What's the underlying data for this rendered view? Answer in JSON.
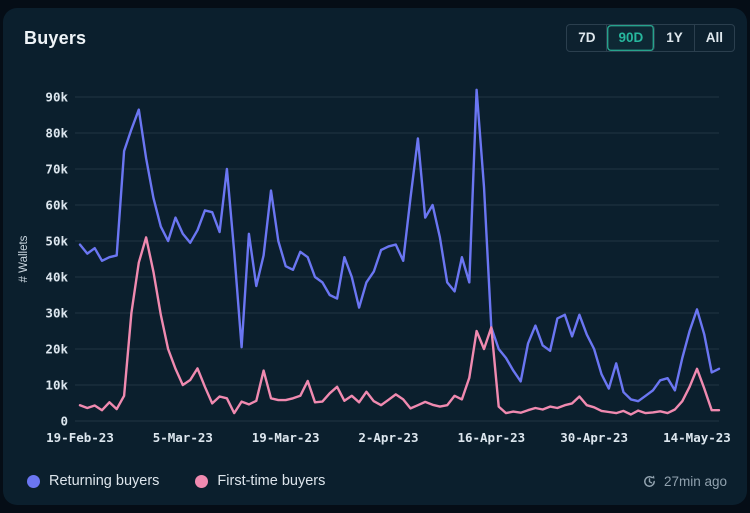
{
  "header": {
    "title": "Buyers",
    "ranges": [
      {
        "label": "7D",
        "active": false
      },
      {
        "label": "90D",
        "active": true
      },
      {
        "label": "1Y",
        "active": false
      },
      {
        "label": "All",
        "active": false
      }
    ]
  },
  "footer": {
    "updated": "27min ago",
    "updated_icon": "refresh-clock-icon"
  },
  "colors": {
    "background_outer": "#050d16",
    "background_card": "#0b1f2d",
    "returning": "#6b76f2",
    "first_time": "#f08ab0",
    "accent_teal": "#27b79e",
    "gridline": "rgba(185,208,218,0.13)",
    "tick_text": "#dce6ee",
    "muted_text": "#90a1ae"
  },
  "chart_data": {
    "type": "line",
    "title": "Buyers",
    "xlabel": "",
    "ylabel": "# Wallets",
    "x_description": "daily values over the selected 90-day range (19-Feb-23 onward, 88 points)",
    "values_unit": "thousands of wallets",
    "ylim": [
      0,
      95
    ],
    "grid": "horizontal",
    "legend_position": "bottom-left",
    "y_tick_values": [
      0,
      10,
      20,
      30,
      40,
      50,
      60,
      70,
      80,
      90
    ],
    "y_tick_labels": [
      "0",
      "10k",
      "20k",
      "30k",
      "40k",
      "50k",
      "60k",
      "70k",
      "80k",
      "90k"
    ],
    "x_tick_positions": [
      0,
      14,
      28,
      42,
      56,
      70,
      84
    ],
    "x_tick_labels": [
      "19-Feb-23",
      "5-Mar-23",
      "19-Mar-23",
      "2-Apr-23",
      "16-Apr-23",
      "30-Apr-23",
      "14-May-23"
    ],
    "series": [
      {
        "name": "Returning buyers",
        "color": "#6b76f2",
        "values": [
          49,
          46.5,
          48,
          44.5,
          45.5,
          46,
          75,
          81,
          86.5,
          73,
          62,
          54,
          50,
          56.5,
          52,
          49.5,
          53,
          58.5,
          58,
          52.5,
          70,
          47,
          20.5,
          52,
          37.5,
          46,
          64,
          50,
          43,
          42,
          47,
          45.5,
          40,
          38.5,
          35,
          34,
          45.5,
          40,
          31.5,
          38.5,
          41.5,
          47.5,
          48.5,
          49,
          44.5,
          62,
          78.5,
          56.5,
          60,
          51,
          38.5,
          36,
          45.5,
          38.5,
          92,
          65,
          26,
          20,
          17.5,
          14,
          11,
          21.5,
          26.5,
          21,
          19.5,
          28.5,
          29.5,
          23.5,
          29.5,
          24,
          20,
          13,
          9,
          16,
          8,
          6,
          5.5,
          7,
          8.5,
          11.3,
          11.9,
          8.5,
          17.5,
          25,
          31,
          24,
          13.5,
          14.5
        ]
      },
      {
        "name": "First-time buyers",
        "color": "#f08ab0",
        "values": [
          4.4,
          3.6,
          4.3,
          3,
          5.2,
          3.3,
          7,
          30,
          44,
          51,
          41.5,
          29.5,
          20,
          14.5,
          10,
          11.4,
          14.6,
          9.5,
          4.9,
          6.8,
          6.3,
          2.2,
          5.4,
          4.6,
          5.6,
          14,
          6.3,
          5.8,
          5.8,
          6.3,
          7,
          11.1,
          5.2,
          5.4,
          7.7,
          9.5,
          5.6,
          7,
          5.2,
          8.1,
          5.5,
          4.4,
          5.9,
          7.4,
          6,
          3.5,
          4.4,
          5.3,
          4.5,
          4,
          4.4,
          7,
          6,
          12,
          25,
          20,
          26,
          4,
          2.2,
          2.6,
          2.3,
          3,
          3.6,
          3.2,
          4,
          3.6,
          4.4,
          4.9,
          6.8,
          4.4,
          3.8,
          2.8,
          2.5,
          2.2,
          2.8,
          1.8,
          2.9,
          2.2,
          2.4,
          2.7,
          2.2,
          3.2,
          5.5,
          9.5,
          14.5,
          9,
          3,
          3
        ]
      }
    ]
  }
}
